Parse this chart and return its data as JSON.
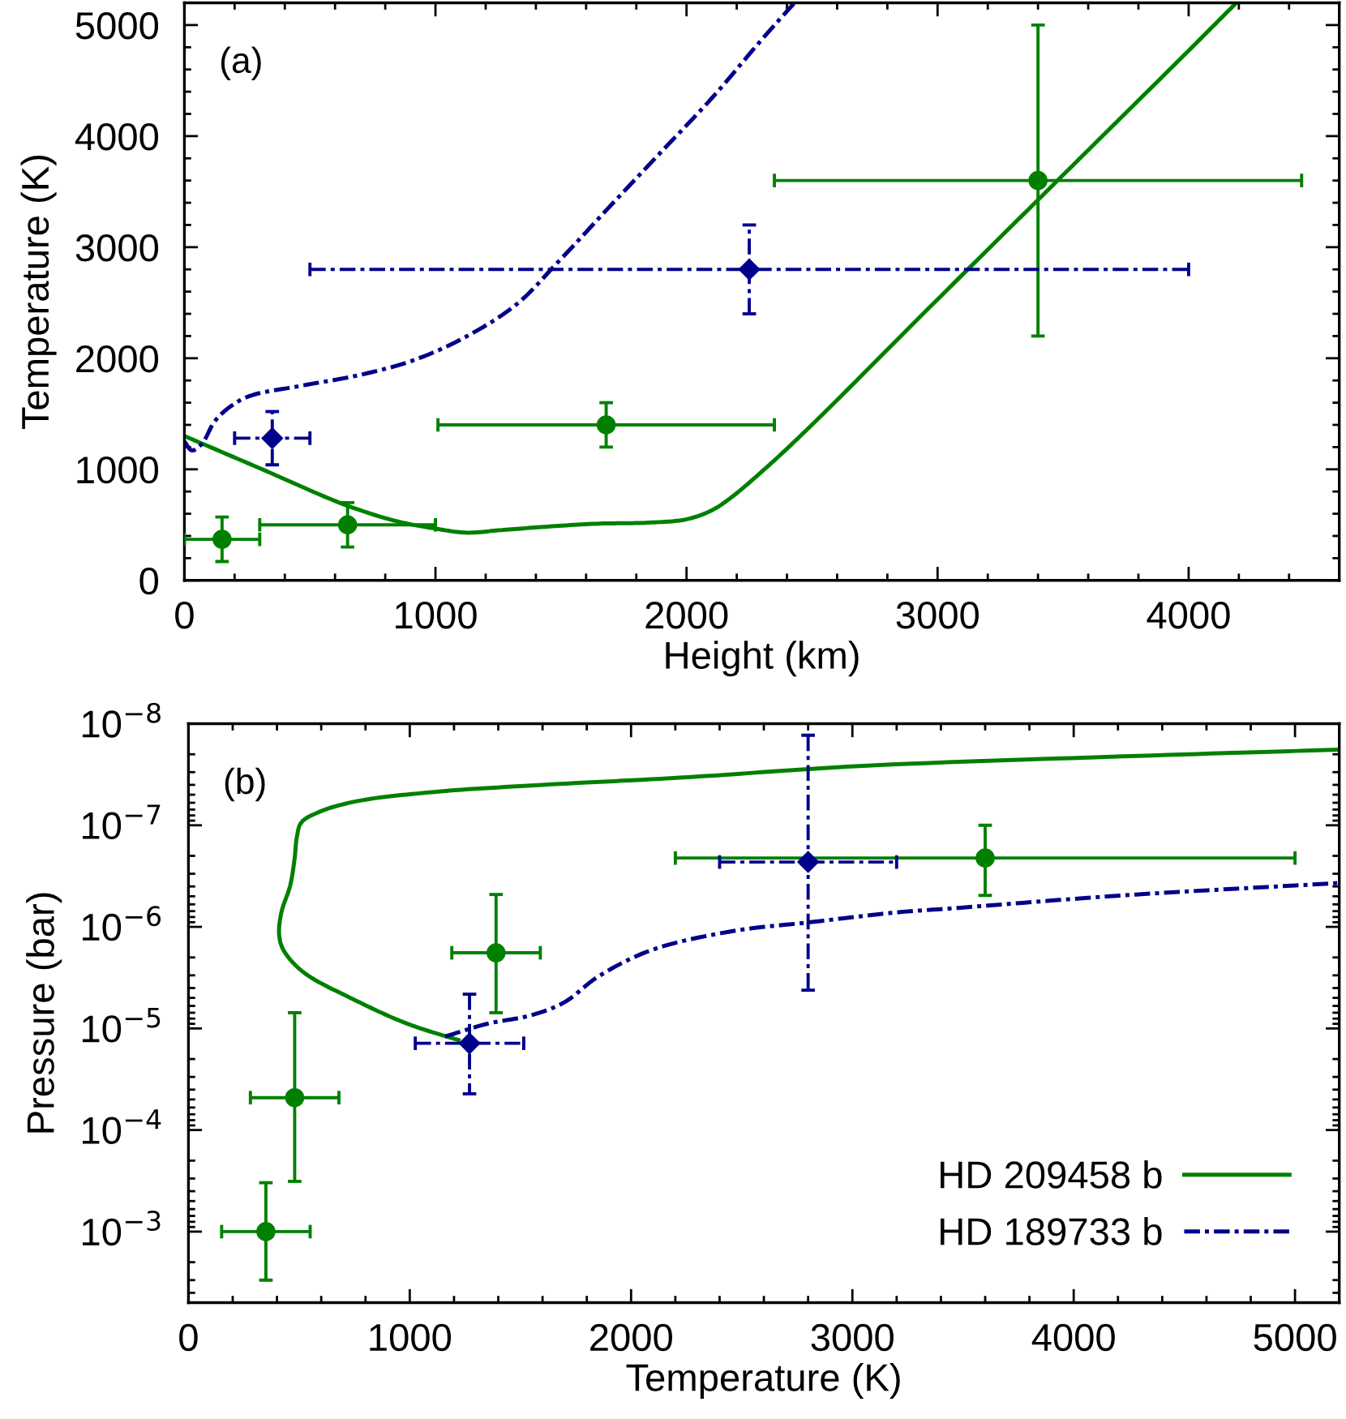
{
  "chart_data": [
    {
      "type": "line",
      "xlabel": "Height (km)",
      "ylabel": "Temperature (K)",
      "annotations": [
        "(a)"
      ],
      "xlim": [
        0,
        4600
      ],
      "xticks": [
        0,
        1000,
        2000,
        3000,
        4000,
        {
          "value": 200,
          "label": null
        },
        {
          "value": 400,
          "label": null
        },
        {
          "value": 600,
          "label": null
        },
        {
          "value": 800,
          "label": null
        },
        {
          "value": 1200,
          "label": null
        },
        {
          "value": 1400,
          "label": null
        },
        {
          "value": 1600,
          "label": null
        },
        {
          "value": 1800,
          "label": null
        },
        {
          "value": 2200,
          "label": null
        },
        {
          "value": 2400,
          "label": null
        },
        {
          "value": 2600,
          "label": null
        },
        {
          "value": 2800,
          "label": null
        },
        {
          "value": 3200,
          "label": null
        },
        {
          "value": 3400,
          "label": null
        },
        {
          "value": 3600,
          "label": null
        },
        {
          "value": 3800,
          "label": null
        },
        {
          "value": 4200,
          "label": null
        },
        {
          "value": 4400,
          "label": null
        }
      ],
      "ylim": [
        0,
        5200
      ],
      "yticks": [
        0,
        1000,
        2000,
        3000,
        4000,
        5000,
        {
          "value": 200,
          "label": null
        },
        {
          "value": 400,
          "label": null
        },
        {
          "value": 600,
          "label": null
        },
        {
          "value": 800,
          "label": null
        },
        {
          "value": 1200,
          "label": null
        },
        {
          "value": 1400,
          "label": null
        },
        {
          "value": 1600,
          "label": null
        },
        {
          "value": 1800,
          "label": null
        },
        {
          "value": 2200,
          "label": null
        },
        {
          "value": 2400,
          "label": null
        },
        {
          "value": 2600,
          "label": null
        },
        {
          "value": 2800,
          "label": null
        },
        {
          "value": 3200,
          "label": null
        },
        {
          "value": 3400,
          "label": null
        },
        {
          "value": 3600,
          "label": null
        },
        {
          "value": 3800,
          "label": null
        },
        {
          "value": 4200,
          "label": null
        },
        {
          "value": 4400,
          "label": null
        },
        {
          "value": 4600,
          "label": null
        },
        {
          "value": 4800,
          "label": null
        }
      ],
      "series": [
        {
          "color": "#008000",
          "line_style": "solid",
          "x": [
            0,
            320,
            640,
            850,
            990,
            1120,
            1250,
            1420,
            1640,
            1850,
            2000,
            2100,
            2180,
            2330,
            2490,
            3000,
            3500,
            4000,
            4190
          ],
          "values": [
            1300,
            990,
            680,
            530,
            470,
            430,
            450,
            480,
            510,
            520,
            550,
            630,
            750,
            1040,
            1380,
            2530,
            3650,
            4770,
            5200
          ]
        },
        {
          "color": "#00008b",
          "line_style": "dashdot",
          "x": [
            0,
            30,
            70,
            120,
            180,
            260,
            460,
            700,
            910,
            1110,
            1320,
            1490,
            1700,
            1900,
            2100,
            2300,
            2430
          ],
          "values": [
            1250,
            1170,
            1230,
            1430,
            1560,
            1660,
            1750,
            1850,
            1980,
            2180,
            2480,
            2870,
            3380,
            3860,
            4340,
            4870,
            5200
          ]
        },
        {
          "type": "scatter",
          "color": "#008000",
          "marker": "circle",
          "line_style": "solid",
          "x": [
            150,
            650,
            1680,
            3400
          ],
          "values": [
            370,
            500,
            1400,
            3600
          ],
          "errors": [
            200,
            200,
            200,
            1400
          ],
          "xerrors": [
            150,
            350,
            670,
            1050
          ]
        },
        {
          "type": "scatter",
          "color": "#00008b",
          "marker": "diamond",
          "line_style": "dashdot",
          "x": [
            350,
            2250
          ],
          "values": [
            1280,
            2800
          ],
          "errors": [
            240,
            400
          ],
          "xerrors": [
            150,
            1750
          ]
        }
      ]
    },
    {
      "type": "line",
      "xlabel": "Temperature (K)",
      "ylabel": "Pressure (bar)",
      "annotations": [
        "(b)"
      ],
      "log": "y",
      "legend": "bottom right",
      "xlim": [
        0,
        5200
      ],
      "xticks": [
        0,
        1000,
        2000,
        3000,
        4000,
        5000,
        {
          "value": 200,
          "label": null
        },
        {
          "value": 400,
          "label": null
        },
        {
          "value": 600,
          "label": null
        },
        {
          "value": 800,
          "label": null
        },
        {
          "value": 1200,
          "label": null
        },
        {
          "value": 1400,
          "label": null
        },
        {
          "value": 1600,
          "label": null
        },
        {
          "value": 1800,
          "label": null
        },
        {
          "value": 2200,
          "label": null
        },
        {
          "value": 2400,
          "label": null
        },
        {
          "value": 2600,
          "label": null
        },
        {
          "value": 2800,
          "label": null
        },
        {
          "value": 3200,
          "label": null
        },
        {
          "value": 3400,
          "label": null
        },
        {
          "value": 3600,
          "label": null
        },
        {
          "value": 3800,
          "label": null
        },
        {
          "value": 4200,
          "label": null
        },
        {
          "value": 4400,
          "label": null
        },
        {
          "value": 4600,
          "label": null
        },
        {
          "value": 4800,
          "label": null
        }
      ],
      "ylim": [
        0.005,
        1e-08
      ],
      "yticks": [
        {
          "value": 1e-08,
          "label": "10$^{−8}$"
        },
        {
          "value": 1e-07,
          "label": "10$^{−7}$"
        },
        {
          "value": 1e-06,
          "label": "10$^{−6}$"
        },
        {
          "value": 1e-05,
          "label": "10$^{−5}$"
        },
        {
          "value": 0.0001,
          "label": "10$^{−4}$"
        },
        {
          "value": 0.001,
          "label": "10$^{−3}$"
        },
        {
          "value": 2e-08,
          "label": null
        },
        {
          "value": 3e-08,
          "label": null
        },
        {
          "value": 4e-08,
          "label": null
        },
        {
          "value": 5e-08,
          "label": null
        },
        {
          "value": 6e-08,
          "label": null
        },
        {
          "value": 7e-08,
          "label": null
        },
        {
          "value": 8e-08,
          "label": null
        },
        {
          "value": 9e-08,
          "label": null
        },
        {
          "value": 2e-07,
          "label": null
        },
        {
          "value": 3e-07,
          "label": null
        },
        {
          "value": 4e-07,
          "label": null
        },
        {
          "value": 5e-07,
          "label": null
        },
        {
          "value": 6e-07,
          "label": null
        },
        {
          "value": 7e-07,
          "label": null
        },
        {
          "value": 8e-07,
          "label": null
        },
        {
          "value": 9e-07,
          "label": null
        },
        {
          "value": 2e-06,
          "label": null
        },
        {
          "value": 3e-06,
          "label": null
        },
        {
          "value": 4e-06,
          "label": null
        },
        {
          "value": 5e-06,
          "label": null
        },
        {
          "value": 6e-06,
          "label": null
        },
        {
          "value": 7e-06,
          "label": null
        },
        {
          "value": 8e-06,
          "label": null
        },
        {
          "value": 9e-06,
          "label": null
        },
        {
          "value": 2e-05,
          "label": null
        },
        {
          "value": 3e-05,
          "label": null
        },
        {
          "value": 4e-05,
          "label": null
        },
        {
          "value": 5e-05,
          "label": null
        },
        {
          "value": 6e-05,
          "label": null
        },
        {
          "value": 7e-05,
          "label": null
        },
        {
          "value": 8e-05,
          "label": null
        },
        {
          "value": 9e-05,
          "label": null
        },
        {
          "value": 0.0002,
          "label": null
        },
        {
          "value": 0.0003,
          "label": null
        },
        {
          "value": 0.0004,
          "label": null
        },
        {
          "value": 0.0005,
          "label": null
        },
        {
          "value": 0.0006,
          "label": null
        },
        {
          "value": 0.0007,
          "label": null
        },
        {
          "value": 0.0008,
          "label": null
        },
        {
          "value": 0.0009,
          "label": null
        },
        {
          "value": 0.002,
          "label": null
        },
        {
          "value": 0.003,
          "label": null
        },
        {
          "value": 0.004,
          "label": null
        }
      ],
      "series": [
        {
          "name": "HD 209458 b",
          "color": "#008000",
          "line_style": "solid",
          "x": [
            1220,
            990,
            740,
            520,
            430,
            410,
            420,
            460,
            480,
            490,
            510,
            590,
            760,
            1110,
            1600,
            2220,
            3050,
            4220,
            5200
          ],
          "values": [
            1.3e-05,
            9e-06,
            5.1e-06,
            2.8e-06,
            1.7e-06,
            1.2e-06,
            7.2e-07,
            3.9e-07,
            2.1e-07,
            1.3e-07,
            9.4e-08,
            7.4e-08,
            5.8e-08,
            4.7e-08,
            4e-08,
            3.4e-08,
            2.6e-08,
            2.1e-08,
            1.8e-08
          ]
        },
        {
          "name": "HD 189733 b",
          "color": "#00008b",
          "line_style": "dashdot",
          "x": [
            1160,
            1350,
            1550,
            1700,
            1850,
            2090,
            2460,
            2810,
            3200,
            3440,
            4220,
            5200
          ],
          "values": [
            1.2e-05,
            9e-06,
            7.4e-06,
            5.5e-06,
            3.1e-06,
            1.7e-06,
            1.1e-06,
            9e-07,
            7.2e-07,
            6.6e-07,
            4.9e-07,
            3.7e-07
          ]
        },
        {
          "type": "scatter",
          "color": "#008000",
          "marker": "circle",
          "line_style": "solid",
          "x": [
            350,
            480,
            1390,
            3600
          ],
          "values": [
            0.001,
            4.8e-05,
            1.8e-06,
            2.1e-07
          ],
          "errors": [
            [
              0.00033,
              0.003
            ],
            [
              7e-06,
              0.00032
            ],
            [
              4.8e-07,
              7e-06
            ],
            [
              1e-07,
              4.9e-07
            ]
          ],
          "xerrors": [
            200,
            200,
            200,
            1400
          ]
        },
        {
          "type": "scatter",
          "color": "#00008b",
          "marker": "diamond",
          "line_style": "dashdot",
          "x": [
            1270,
            2800
          ],
          "values": [
            1.4e-05,
            2.3e-07
          ],
          "errors": [
            [
              4.6e-06,
              4.4e-05
            ],
            [
              1.3e-08,
              4.2e-06
            ]
          ],
          "xerrors": [
            245,
            400
          ]
        }
      ]
    }
  ]
}
